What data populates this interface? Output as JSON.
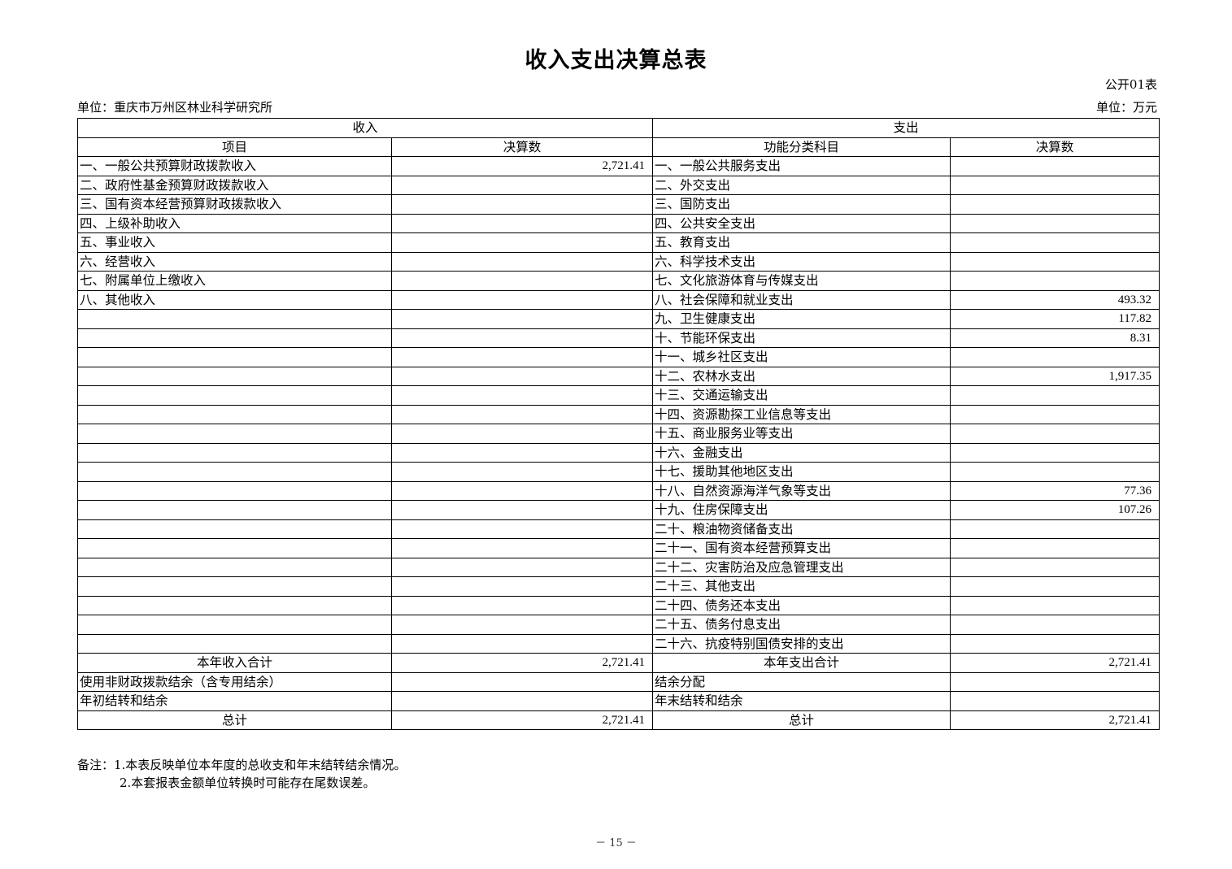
{
  "title": "收入支出决算总表",
  "table_no": "公开01表",
  "unit_org": "单位：重庆市万州区林业科学研究所",
  "unit_money": "单位：万元",
  "headers": {
    "income": "收入",
    "expense": "支出",
    "item": "项目",
    "amount": "决算数",
    "func_item": "功能分类科目",
    "amount2": "决算数"
  },
  "rows": [
    {
      "inc": "一、一般公共预算财政拨款收入",
      "inc_amt": "2,721.41",
      "exp": "一、一般公共服务支出",
      "exp_amt": ""
    },
    {
      "inc": "二、政府性基金预算财政拨款收入",
      "inc_amt": "",
      "exp": "二、外交支出",
      "exp_amt": ""
    },
    {
      "inc": "三、国有资本经营预算财政拨款收入",
      "inc_amt": "",
      "exp": "三、国防支出",
      "exp_amt": ""
    },
    {
      "inc": "四、上级补助收入",
      "inc_amt": "",
      "exp": "四、公共安全支出",
      "exp_amt": ""
    },
    {
      "inc": "五、事业收入",
      "inc_amt": "",
      "exp": "五、教育支出",
      "exp_amt": ""
    },
    {
      "inc": "六、经营收入",
      "inc_amt": "",
      "exp": "六、科学技术支出",
      "exp_amt": ""
    },
    {
      "inc": "七、附属单位上缴收入",
      "inc_amt": "",
      "exp": "七、文化旅游体育与传媒支出",
      "exp_amt": ""
    },
    {
      "inc": "八、其他收入",
      "inc_amt": "",
      "exp": "八、社会保障和就业支出",
      "exp_amt": "493.32"
    },
    {
      "inc": "",
      "inc_amt": "",
      "exp": "九、卫生健康支出",
      "exp_amt": "117.82"
    },
    {
      "inc": "",
      "inc_amt": "",
      "exp": "十、节能环保支出",
      "exp_amt": "8.31"
    },
    {
      "inc": "",
      "inc_amt": "",
      "exp": "十一、城乡社区支出",
      "exp_amt": ""
    },
    {
      "inc": "",
      "inc_amt": "",
      "exp": "十二、农林水支出",
      "exp_amt": "1,917.35"
    },
    {
      "inc": "",
      "inc_amt": "",
      "exp": "十三、交通运输支出",
      "exp_amt": ""
    },
    {
      "inc": "",
      "inc_amt": "",
      "exp": "十四、资源勘探工业信息等支出",
      "exp_amt": ""
    },
    {
      "inc": "",
      "inc_amt": "",
      "exp": "十五、商业服务业等支出",
      "exp_amt": ""
    },
    {
      "inc": "",
      "inc_amt": "",
      "exp": "十六、金融支出",
      "exp_amt": ""
    },
    {
      "inc": "",
      "inc_amt": "",
      "exp": "十七、援助其他地区支出",
      "exp_amt": ""
    },
    {
      "inc": "",
      "inc_amt": "",
      "exp": "十八、自然资源海洋气象等支出",
      "exp_amt": "77.36"
    },
    {
      "inc": "",
      "inc_amt": "",
      "exp": "十九、住房保障支出",
      "exp_amt": "107.26"
    },
    {
      "inc": "",
      "inc_amt": "",
      "exp": "二十、粮油物资储备支出",
      "exp_amt": ""
    },
    {
      "inc": "",
      "inc_amt": "",
      "exp": "二十一、国有资本经营预算支出",
      "exp_amt": ""
    },
    {
      "inc": "",
      "inc_amt": "",
      "exp": "二十二、灾害防治及应急管理支出",
      "exp_amt": ""
    },
    {
      "inc": "",
      "inc_amt": "",
      "exp": "二十三、其他支出",
      "exp_amt": ""
    },
    {
      "inc": "",
      "inc_amt": "",
      "exp": "二十四、债务还本支出",
      "exp_amt": ""
    },
    {
      "inc": "",
      "inc_amt": "",
      "exp": "二十五、债务付息支出",
      "exp_amt": ""
    },
    {
      "inc": "",
      "inc_amt": "",
      "exp": "二十六、抗疫特别国债安排的支出",
      "exp_amt": ""
    }
  ],
  "summary": [
    {
      "inc": "本年收入合计",
      "inc_amt": "2,721.41",
      "exp": "本年支出合计",
      "exp_amt": "2,721.41",
      "center": true
    },
    {
      "inc": "使用非财政拨款结余（含专用结余）",
      "inc_amt": "",
      "exp": "结余分配",
      "exp_amt": "",
      "center": false
    },
    {
      "inc": "年初结转和结余",
      "inc_amt": "",
      "exp": "年末结转和结余",
      "exp_amt": "",
      "center": false
    },
    {
      "inc": "总计",
      "inc_amt": "2,721.41",
      "exp": "总计",
      "exp_amt": "2,721.41",
      "center": true
    }
  ],
  "notes": {
    "line1": "备注：1.本表反映单位本年度的总收支和年末结转结余情况。",
    "line2": "2.本套报表金额单位转换时可能存在尾数误差。"
  },
  "page_number": "－ 15 －"
}
